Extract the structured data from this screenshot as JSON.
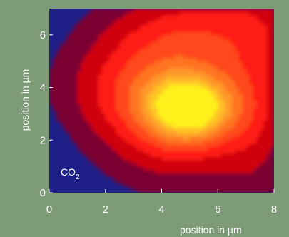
{
  "chart_data": {
    "type": "heatmap",
    "xlabel": "position in µm",
    "ylabel": "position in µm",
    "xlim": [
      0,
      8
    ],
    "ylim": [
      0,
      7
    ],
    "x_ticks": [
      0,
      2,
      4,
      6,
      8
    ],
    "y_ticks": [
      0,
      2,
      4,
      6
    ],
    "annotation": {
      "text": "CO",
      "subscript": "2"
    },
    "colors": {
      "background": "#7e9b78",
      "low": "#1f1f88",
      "levels": [
        "#7a0030",
        "#d00010",
        "#ff1a14",
        "#ff4a1e",
        "#ff7424",
        "#ff9a2a",
        "#ffc228",
        "#fff21a"
      ]
    },
    "grid": false,
    "intensity_model": {
      "description": "relative intensity, 0 (blue) to 1 (yellow)",
      "peak_center": [
        5,
        3.2
      ],
      "components": [
        {
          "cx": 5.0,
          "cy": 3.2,
          "sx": 1.05,
          "sy": 0.85,
          "a": 0.62
        },
        {
          "cx": 4.5,
          "cy": 3.0,
          "sx": 2.2,
          "sy": 2.0,
          "a": 0.42
        },
        {
          "cx": 3.5,
          "cy": 4.2,
          "sx": 2.4,
          "sy": 1.3,
          "a": 0.22
        },
        {
          "cx": 5.5,
          "cy": 6.4,
          "sx": 2.6,
          "sy": 1.1,
          "a": 0.28
        },
        {
          "cx": 7.4,
          "cy": 3.2,
          "sx": 0.9,
          "sy": 3.2,
          "a": 0.16
        }
      ]
    }
  }
}
